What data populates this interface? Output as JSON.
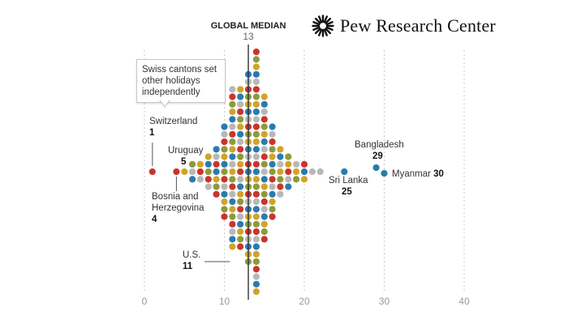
{
  "brand": {
    "name": "Pew Research Center",
    "logo_icon": "pew-sunburst-logo"
  },
  "chart_data": {
    "type": "scatter",
    "subtype": "dot-histogram",
    "title": "",
    "xlabel": "",
    "ylabel": "",
    "xlim": [
      0,
      40
    ],
    "x_ticks": [
      "0",
      "10",
      "20",
      "30",
      "40"
    ],
    "grid": true,
    "median": {
      "label": "GLOBAL MEDIAN",
      "value": 13
    },
    "colors": [
      "#2a7ab0",
      "#d0a42b",
      "#8c9a3c",
      "#c9352c",
      "#b8b8b8"
    ],
    "bins": [
      {
        "x": 1,
        "count": 1
      },
      {
        "x": 4,
        "count": 1
      },
      {
        "x": 5,
        "count": 1
      },
      {
        "x": 6,
        "count": 3
      },
      {
        "x": 7,
        "count": 3
      },
      {
        "x": 8,
        "count": 5
      },
      {
        "x": 9,
        "count": 7
      },
      {
        "x": 10,
        "count": 13
      },
      {
        "x": 11,
        "count": 22
      },
      {
        "x": 12,
        "count": 22
      },
      {
        "x": 13,
        "count": 26
      },
      {
        "x": 14,
        "count": 33
      },
      {
        "x": 15,
        "count": 20
      },
      {
        "x": 16,
        "count": 13
      },
      {
        "x": 17,
        "count": 7
      },
      {
        "x": 18,
        "count": 5
      },
      {
        "x": 19,
        "count": 3
      },
      {
        "x": 20,
        "count": 3
      },
      {
        "x": 21,
        "count": 1
      },
      {
        "x": 22,
        "count": 1
      },
      {
        "x": 25,
        "count": 1
      },
      {
        "x": 29,
        "count": 1
      },
      {
        "x": 30,
        "count": 1
      }
    ],
    "annotations": [
      {
        "country": "Switzerland",
        "value": 1,
        "note": "Swiss cantons set other holidays independently"
      },
      {
        "country": "Bosnia and Herzegovina",
        "value": 4
      },
      {
        "country": "Uruguay",
        "value": 5
      },
      {
        "country": "U.S.",
        "value": 11
      },
      {
        "country": "Sri Lanka",
        "value": 25
      },
      {
        "country": "Bangladesh",
        "value": 29
      },
      {
        "country": "Myanmar",
        "value": 30
      }
    ]
  },
  "labels": {
    "median_title": "GLOBAL MEDIAN",
    "median_value": "13",
    "note": "Swiss cantons set other holidays independently",
    "switzerland": "Switzerland",
    "switzerland_v": "1",
    "uruguay": "Uruguay",
    "uruguay_v": "5",
    "bosnia1": "Bosnia and",
    "bosnia2": "Herzegovina",
    "bosnia_v": "4",
    "us": "U.S.",
    "us_v": "11",
    "bangladesh": "Bangladesh",
    "bangladesh_v": "29",
    "srilanka": "Sri Lanka",
    "srilanka_v": "25",
    "myanmar": "Myanmar",
    "myanmar_v": "30"
  }
}
